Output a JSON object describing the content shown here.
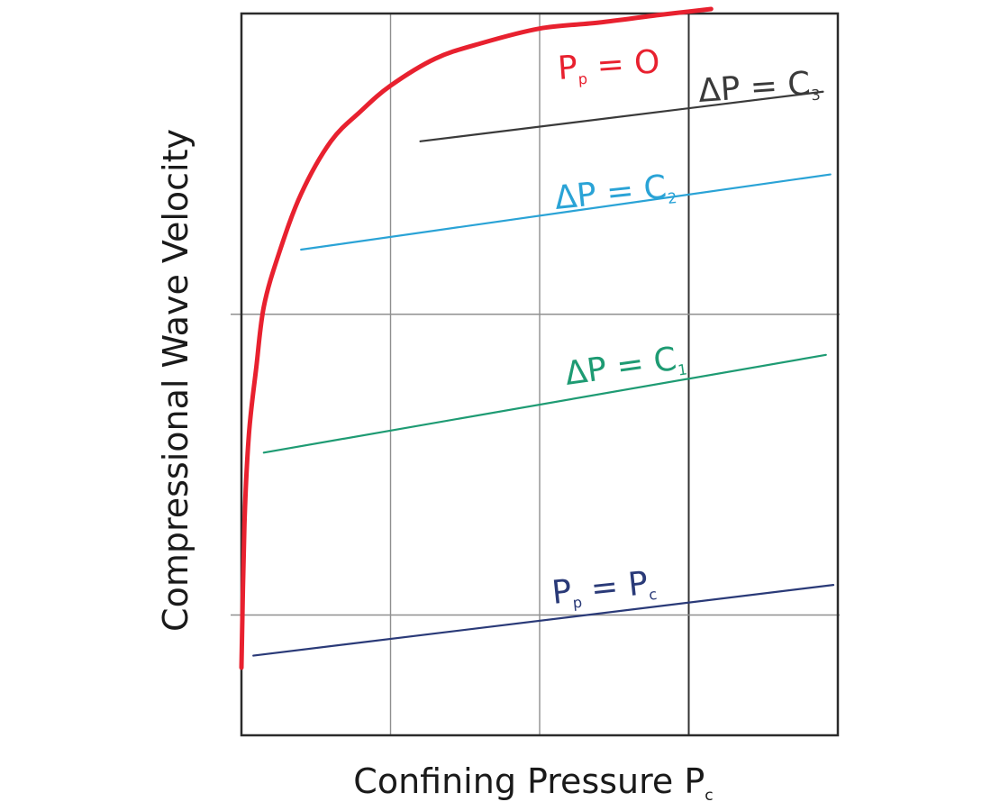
{
  "chart_data": {
    "type": "line",
    "title": "",
    "xlabel": "Confining Pressure Pc",
    "xlabel_main": "Confining Pressure P",
    "xlabel_sub": "c",
    "ylabel": "Compressional Wave Velocity",
    "xlim": [
      0,
      4
    ],
    "ylim": [
      0,
      4.8
    ],
    "grid": true,
    "x_gridlines": [
      1,
      2,
      3
    ],
    "y_gridlines": [
      0.8,
      2.8
    ],
    "axis_ticks": false,
    "series": [
      {
        "name": "Pp = 0",
        "label_main": "P",
        "label_sub": "p",
        "label_rest": " = O",
        "color": "#e8212f",
        "x": [
          0.0,
          0.02,
          0.05,
          0.1,
          0.15,
          0.25,
          0.4,
          0.6,
          0.8,
          1.0,
          1.3,
          1.6,
          2.0,
          2.4,
          2.8,
          3.15
        ],
        "y": [
          0.45,
          1.4,
          2.0,
          2.45,
          2.85,
          3.2,
          3.6,
          3.95,
          4.15,
          4.32,
          4.5,
          4.6,
          4.7,
          4.74,
          4.79,
          4.83
        ]
      },
      {
        "name": "ΔP = C3",
        "label_main": "ΔP = C",
        "label_sub": "3",
        "label_rest": "",
        "color": "#3a3a3a",
        "x": [
          1.2,
          3.9
        ],
        "y": [
          3.95,
          4.28
        ]
      },
      {
        "name": "ΔP = C2",
        "label_main": "ΔP = C",
        "label_sub": "2",
        "label_rest": "",
        "color": "#2aa3d6",
        "x": [
          0.4,
          3.95
        ],
        "y": [
          3.23,
          3.73
        ]
      },
      {
        "name": "ΔP = C1",
        "label_main": "ΔP = C",
        "label_sub": "1",
        "label_rest": "",
        "color": "#1e9b73",
        "x": [
          0.15,
          3.92
        ],
        "y": [
          1.88,
          2.53
        ]
      },
      {
        "name": "Pp = Pc",
        "label_main": "P",
        "label_sub": "p",
        "label_rest": " = P",
        "label_sub2": "c",
        "color": "#2a3a78",
        "x": [
          0.08,
          3.97
        ],
        "y": [
          0.53,
          1.0
        ]
      }
    ]
  }
}
